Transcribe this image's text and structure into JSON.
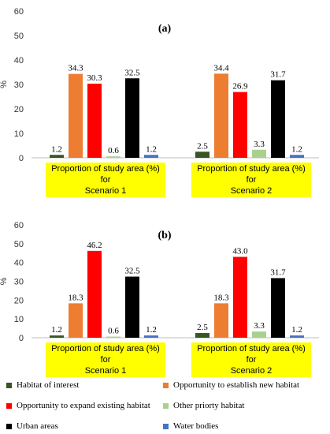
{
  "chart_data": [
    {
      "type": "bar",
      "title": "(a)",
      "ylabel": "%",
      "ylim": [
        0,
        60
      ],
      "yticks": [
        0,
        10,
        20,
        30,
        40,
        50,
        60
      ],
      "categories": [
        "Proportion of study area (%) for Scenario 1",
        "Proportion of study area (%) for Scenario 2"
      ],
      "series": [
        {
          "name": "Habitat of interest",
          "color": "#375623",
          "values": [
            1.2,
            2.5
          ]
        },
        {
          "name": "Opportunity to establish new habitat",
          "color": "#ed7d31",
          "values": [
            34.3,
            34.4
          ]
        },
        {
          "name": "Opportunity to expand existing habitat",
          "color": "#ff0000",
          "values": [
            30.3,
            26.9
          ]
        },
        {
          "name": "Other priorty habitat",
          "color": "#a9d18e",
          "values": [
            0.6,
            3.3
          ]
        },
        {
          "name": "Urban areas",
          "color": "#000000",
          "values": [
            32.5,
            31.7
          ]
        },
        {
          "name": "Water bodies",
          "color": "#4472c4",
          "values": [
            1.2,
            1.2
          ]
        }
      ]
    },
    {
      "type": "bar",
      "title": "(b)",
      "ylabel": "%",
      "ylim": [
        0,
        60
      ],
      "yticks": [
        0,
        10,
        20,
        30,
        40,
        50,
        60
      ],
      "categories": [
        "Proportion of study area (%) for Scenario 1",
        "Proportion of study area (%) for Scenario 2"
      ],
      "series": [
        {
          "name": "Habitat of interest",
          "color": "#375623",
          "values": [
            1.2,
            2.5
          ]
        },
        {
          "name": "Opportunity to establish new habitat",
          "color": "#ed7d31",
          "values": [
            18.3,
            18.3
          ]
        },
        {
          "name": "Opportunity to expand existing habitat",
          "color": "#ff0000",
          "values": [
            46.2,
            43.0
          ]
        },
        {
          "name": "Other priorty habitat",
          "color": "#a9d18e",
          "values": [
            0.6,
            3.3
          ]
        },
        {
          "name": "Urban areas",
          "color": "#000000",
          "values": [
            32.5,
            31.7
          ]
        },
        {
          "name": "Water bodies",
          "color": "#4472c4",
          "values": [
            1.2,
            1.2
          ]
        }
      ]
    }
  ],
  "category_labels": [
    {
      "line1": "Proportion of study area (%) for",
      "line2": "Scenario 1"
    },
    {
      "line1": "Proportion of study area (%) for",
      "line2": "Scenario 2"
    }
  ],
  "legend": [
    {
      "label": "Habitat of interest",
      "color": "#375623"
    },
    {
      "label": "Opportunity to establish new habitat",
      "color": "#ed7d31"
    },
    {
      "label": "Opportunity to expand existing habitat",
      "color": "#ff0000"
    },
    {
      "label": "Other priorty habitat",
      "color": "#a9d18e"
    },
    {
      "label": "Urban areas",
      "color": "#000000"
    },
    {
      "label": "Water bodies",
      "color": "#4472c4"
    }
  ]
}
